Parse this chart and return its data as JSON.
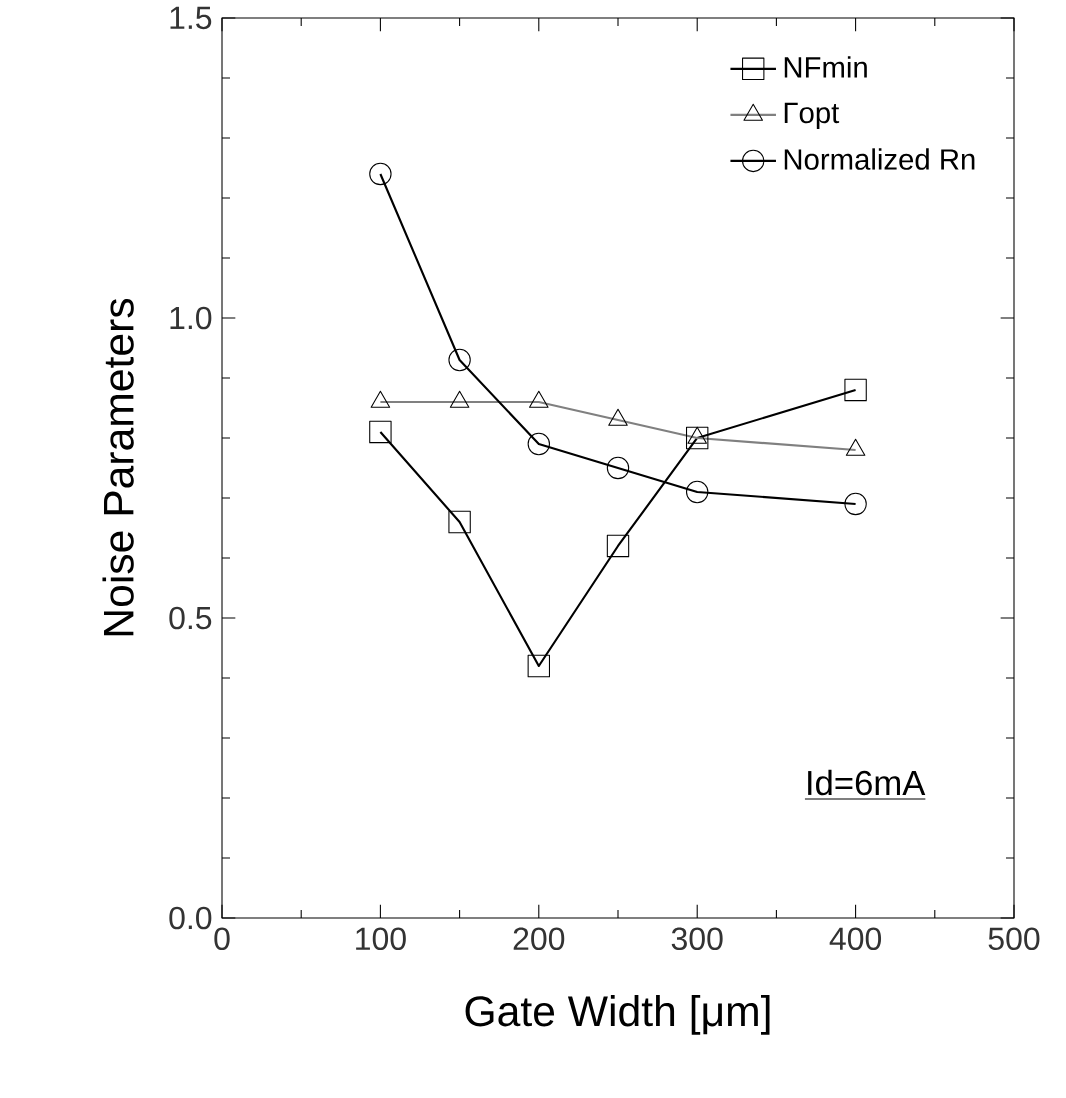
{
  "chart_data": {
    "type": "line",
    "xlabel": "Gate Width [μm]",
    "ylabel": "Noise Parameters",
    "x": [
      100,
      150,
      200,
      250,
      300,
      400
    ],
    "series": [
      {
        "name": "NFmin",
        "color": "#000000",
        "marker": "square",
        "values": [
          0.81,
          0.66,
          0.42,
          0.62,
          0.8,
          0.88
        ]
      },
      {
        "name": "Γopt",
        "color": "#808080",
        "marker": "triangle",
        "values": [
          0.86,
          0.86,
          0.86,
          0.83,
          0.8,
          0.78
        ]
      },
      {
        "name": "Normalized Rn",
        "color": "#000000",
        "marker": "circle",
        "values": [
          1.24,
          0.93,
          0.79,
          0.75,
          0.71,
          0.69
        ]
      }
    ],
    "xlim": [
      0,
      500
    ],
    "xticks": [
      0,
      100,
      200,
      300,
      400,
      500
    ],
    "ylim": [
      0,
      1.5
    ],
    "yticks": [
      {
        "value": 0,
        "label": "0.0"
      },
      {
        "value": 0.5,
        "label": "0.5"
      },
      {
        "value": 1.0,
        "label": "1.0"
      },
      {
        "value": 1.5,
        "label": "1.5"
      }
    ],
    "legend": "top right",
    "grid": false,
    "annotations": [
      "Id=6mA"
    ]
  }
}
